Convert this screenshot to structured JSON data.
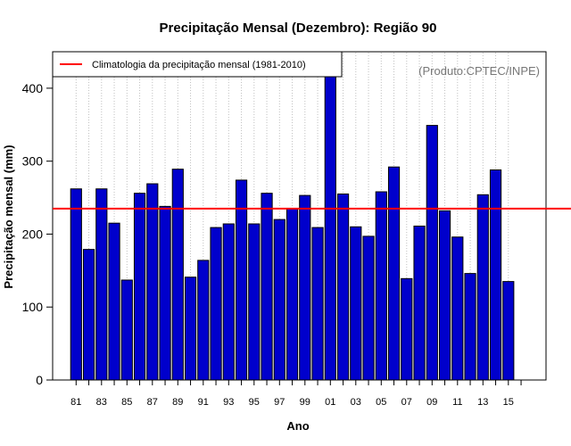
{
  "chart_data": {
    "type": "bar",
    "title": "Precipitação Mensal (Dezembro): Região 90",
    "xlabel": "Ano",
    "ylabel": "Precipitação mensal (mm)",
    "source": "(Produto:CPTEC/INPE)",
    "legend": {
      "label": "Climatologia da precipitação mensal (1981-2010)",
      "position": "top-left"
    },
    "climatology": 235,
    "categories": [
      "81",
      "82",
      "83",
      "84",
      "85",
      "86",
      "87",
      "88",
      "89",
      "90",
      "91",
      "92",
      "93",
      "94",
      "95",
      "96",
      "97",
      "98",
      "99",
      "00",
      "01",
      "02",
      "03",
      "04",
      "05",
      "06",
      "07",
      "08",
      "09",
      "10",
      "11",
      "12",
      "13",
      "14",
      "15"
    ],
    "tick_labels": [
      "81",
      "83",
      "85",
      "87",
      "89",
      "91",
      "93",
      "95",
      "97",
      "99",
      "01",
      "03",
      "05",
      "07",
      "09",
      "11",
      "13",
      "15"
    ],
    "values": [
      262,
      179,
      262,
      215,
      137,
      256,
      269,
      238,
      289,
      141,
      164,
      209,
      214,
      274,
      214,
      256,
      220,
      235,
      253,
      209,
      428,
      255,
      210,
      197,
      258,
      292,
      139,
      211,
      349,
      232,
      196,
      146,
      254,
      288,
      135
    ],
    "ylim": [
      0,
      450
    ],
    "yticks": [
      0,
      100,
      200,
      300,
      400
    ],
    "grid": "vertical dotted",
    "colors": {
      "bar": "#0000cc",
      "climatology": "#ff0000",
      "grid": "#c0c0c0",
      "source": "#777777"
    }
  }
}
